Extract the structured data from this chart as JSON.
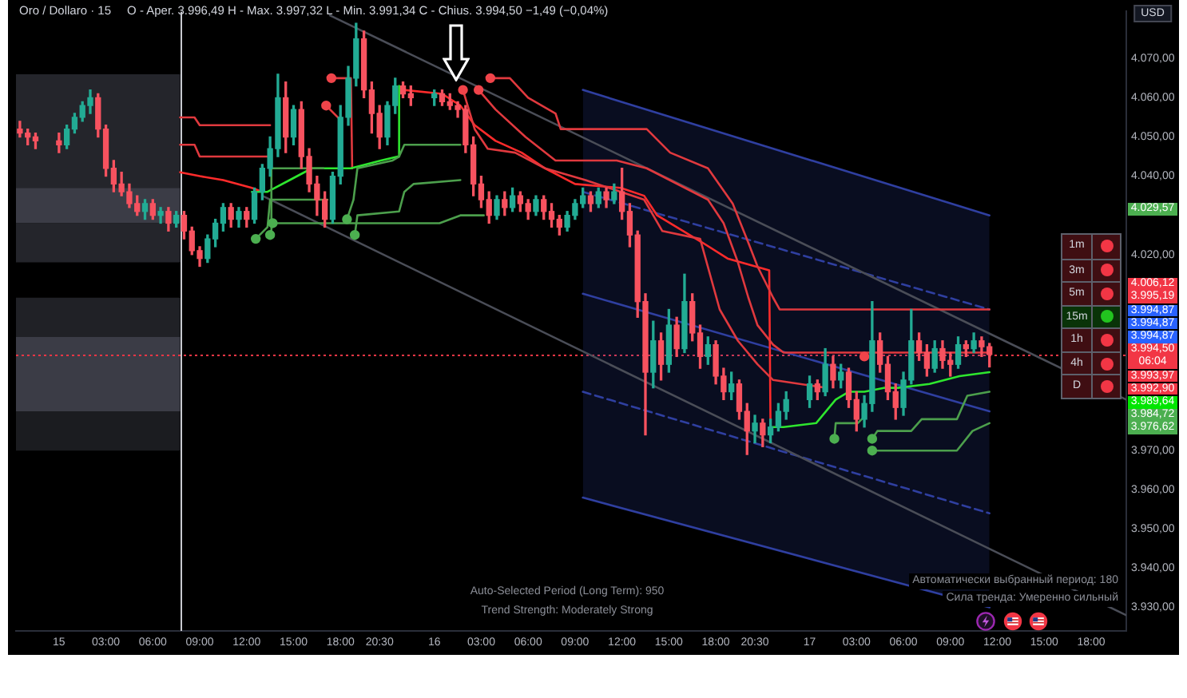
{
  "chart_data": [
    {
      "type": "candlestick",
      "title": "Oro / Dollaro · 15",
      "subtitle": "O - Aper. 3.996,49 H - Max. 3.997,32 L - Min. 3.991,34 C - Chius. 3.994,50 −1,49 (−0,04%)",
      "xlim": [
        "--10-14T21:15",
        "--10-17T20:15"
      ],
      "ylim": [
        3924,
        4082
      ],
      "xticks": [
        {
          "value": "--10-15",
          "label": "15"
        },
        {
          "value": "--10-15T03:00",
          "label": "03:00"
        },
        {
          "value": "--10-15T06:00",
          "label": "06:00"
        },
        {
          "value": "--10-15T09:00",
          "label": "09:00"
        },
        {
          "value": "--10-15T12:00",
          "label": "12:00"
        },
        {
          "value": "--10-15T15:00",
          "label": "15:00"
        },
        {
          "value": "--10-15T18:00",
          "label": "18:00"
        },
        {
          "value": "--10-15T20:30",
          "label": "20:30"
        },
        {
          "value": "--10-16",
          "label": "16"
        },
        {
          "value": "--10-16T03:00",
          "label": "03:00"
        },
        {
          "value": "--10-16T06:00",
          "label": "06:00"
        },
        {
          "value": "--10-16T09:00",
          "label": "09:00"
        },
        {
          "value": "--10-16T12:00",
          "label": "12:00"
        },
        {
          "value": "--10-16T15:00",
          "label": "15:00"
        },
        {
          "value": "--10-16T18:00",
          "label": "18:00"
        },
        {
          "value": "--10-16T20:30",
          "label": "20:30"
        },
        {
          "value": "--10-17",
          "label": "17"
        },
        {
          "value": "--10-17T03:00",
          "label": "03:00"
        },
        {
          "value": "--10-17T06:00",
          "label": "06:00"
        },
        {
          "value": "--10-17T09:00",
          "label": "09:00"
        },
        {
          "value": "--10-17T12:00",
          "label": "12:00"
        },
        {
          "value": "--10-17T15:00",
          "label": "15:00"
        },
        {
          "value": "--10-17T18:00",
          "label": "18:00"
        }
      ],
      "yticks": [
        {
          "value": 3930,
          "label": "3.930,00"
        },
        {
          "value": 3940,
          "label": "3.940,00"
        },
        {
          "value": 3950,
          "label": "3.950,00"
        },
        {
          "value": 3960,
          "label": "3.960,00"
        },
        {
          "value": 3970,
          "label": "3.970,00"
        },
        {
          "value": 4020,
          "label": "4.020,00"
        },
        {
          "value": 4040,
          "label": "4.040,00"
        },
        {
          "value": 4050,
          "label": "4.050,00"
        },
        {
          "value": 4060,
          "label": "4.060,00"
        },
        {
          "value": 4070,
          "label": "4.070,00"
        }
      ],
      "bands": [
        {
          "axis": "y",
          "from": 4037,
          "to": 4066,
          "color": "#24252b"
        },
        {
          "axis": "y",
          "from": 4028,
          "to": 4037,
          "color": "#3b3c46"
        },
        {
          "axis": "y",
          "from": 4018,
          "to": 4028,
          "color": "#24252b"
        },
        {
          "axis": "y",
          "from": 3999,
          "to": 4009,
          "color": "#202126"
        },
        {
          "axis": "y",
          "from": 3980,
          "to": 3999,
          "color": "#3b3c46"
        },
        {
          "axis": "y",
          "from": 3970,
          "to": 3980,
          "color": "#1b1c20"
        }
      ],
      "ref_lines": [
        {
          "axis": "x",
          "value": "--10-15T07:45",
          "color": "#c8cad0"
        },
        {
          "axis": "y",
          "value": 3994.5,
          "color": "#f23645",
          "line_style": "dotted"
        }
      ],
      "annotations": [
        "Auto-Selected Period (Long Term): 950",
        "Trend Strength: Moderately Strong",
        "Автоматически выбранный период: 180",
        "Сила тренда: Умеренно сильный",
        "USD",
        "4.029,57",
        "4.006,12",
        "3.995,19",
        "3.994,87",
        "3.994,87",
        "3.994,87",
        "3.994,50",
        "06:04",
        "3.993,97",
        "3.992,90",
        "3.989,64",
        "3.984,72",
        "3.976,62"
      ],
      "series": [
        {
          "type": "line",
          "color": "#2f3fa0",
          "x": [
            "--10-16T09:30",
            "--10-17T11:30"
          ],
          "values": [
            4010,
            3980
          ],
          "upper": [
            4062,
            4030
          ],
          "lower": [
            3958,
            3930
          ]
        },
        {
          "type": "line",
          "color": "#2f3fa0",
          "x": [
            "--10-16T09:30",
            "--10-17T11:30"
          ],
          "values": [
            4062,
            4030
          ]
        },
        {
          "type": "line",
          "color": "#2f3fa0",
          "line_style": "dashed",
          "x": [
            "--10-16T09:30",
            "--10-17T11:30"
          ],
          "values": [
            4036,
            4006
          ]
        },
        {
          "type": "line",
          "color": "#2f3fa0",
          "line_style": "dashed",
          "x": [
            "--10-16T09:30",
            "--10-17T11:30"
          ],
          "values": [
            3985,
            3954
          ]
        },
        {
          "type": "line",
          "color": "#2f3fa0",
          "x": [
            "--10-16T09:30",
            "--10-17T11:30"
          ],
          "values": [
            3958,
            3930
          ]
        },
        {
          "type": "line",
          "color": "#4a4d57",
          "x": [
            "--10-15T17:20",
            "--10-17T20:15"
          ],
          "values": [
            4081,
            3983
          ]
        },
        {
          "type": "line",
          "color": "#4a4d57",
          "x": [
            "--10-15T13:00",
            "--10-17T20:15"
          ],
          "values": [
            4035,
            3928
          ]
        },
        {
          "type": "line",
          "color": "#e0393e",
          "x": [
            "--10-15T07:45",
            "--10-15T08:40",
            "--10-15T09:00",
            "--10-15T13:30"
          ],
          "values": [
            4055,
            4055,
            4053,
            4053
          ]
        },
        {
          "type": "line",
          "color": "#e0393e",
          "x": [
            "--10-15T07:45",
            "--10-15T08:40",
            "--10-15T09:00",
            "--10-15T13:30"
          ],
          "values": [
            4048,
            4048,
            4045,
            4045
          ]
        },
        {
          "type": "line",
          "color": "#e0393e",
          "x": [
            "--10-15T17:25",
            "--10-15T18:40",
            "--10-15T18:45"
          ],
          "values": [
            4065,
            4065,
            4042
          ]
        },
        {
          "type": "line",
          "color": "#e0393e",
          "x": [
            "--10-15T17:05",
            "--10-15T18:05"
          ],
          "values": [
            4058,
            4054
          ]
        },
        {
          "type": "line",
          "color": "#ff2b2b",
          "x": [
            "--10-15T07:45",
            "--10-15T09:00",
            "--10-15T10:30",
            "--10-15T12:20",
            "--10-15T13:00"
          ],
          "values": [
            4041,
            4040,
            4039,
            4037,
            4036
          ]
        },
        {
          "type": "line",
          "color": "#ff2b2b",
          "x": [
            "--10-15T22:00",
            "--10-16T00:30",
            "--10-16T01:40",
            "--10-16T02:35",
            "--10-16T03:55",
            "--10-16T05:35",
            "--10-16T07:05",
            "--10-16T09:00",
            "--10-16T11:55",
            "--10-16T13:25",
            "--10-16T14:15",
            "--10-16T17:10",
            "--10-16T18:45",
            "--10-16T21:25",
            "--10-16T21:30"
          ],
          "values": [
            4062,
            4061,
            4058,
            4053,
            4049,
            4046,
            4042,
            4038,
            4037,
            4035,
            4030,
            4023,
            4019,
            4016,
            3976
          ]
        },
        {
          "type": "line",
          "color": "#e0393e",
          "x": [
            "--10-16T03:35",
            "--10-16T04:50",
            "--10-16T06:00",
            "--10-16T07:45",
            "--10-16T08:05",
            "--10-16T13:35",
            "--10-16T15:05",
            "--10-16T17:30",
            "--10-16T19:05",
            "--10-16T20:05",
            "--10-16T20:40",
            "--10-16T21:40",
            "--10-16T22:05",
            "--10-17T11:30"
          ],
          "values": [
            4065,
            4065,
            4060,
            4056,
            4052,
            4052,
            4046,
            4042,
            4033,
            4023,
            4017,
            4009,
            4006,
            4006
          ]
        },
        {
          "type": "line",
          "color": "#e0393e",
          "x": [
            "--10-16T02:50",
            "--10-16T03:55",
            "--10-16T05:50",
            "--10-16T07:45",
            "--10-16T11:40",
            "--10-16T13:35",
            "--10-16T17:30",
            "--10-16T18:30",
            "--10-16T19:25",
            "--10-16T20:05",
            "--10-16T20:40",
            "--10-16T21:40",
            "--10-16T22:20",
            "--10-17T11:30"
          ],
          "values": [
            4062,
            4057,
            4050,
            4044,
            4044,
            4042,
            4034,
            4028,
            4018,
            4009,
            4002,
            3997,
            3995,
            3995
          ]
        },
        {
          "type": "line",
          "color": "#e0393e",
          "x": [
            "--10-16T01:50",
            "--10-16T02:35",
            "--10-16T03:25",
            "--10-16T05:10",
            "--10-16T07:05",
            "--10-16T09:40",
            "--10-16T13:25",
            "--10-16T14:35",
            "--10-16T17:00",
            "--10-16T18:15",
            "--10-16T19:25",
            "--10-16T20:40",
            "--10-16T21:40",
            "--10-17T01:05"
          ],
          "values": [
            4062,
            4052,
            4047,
            4046,
            4042,
            4039,
            4034,
            4026,
            4024,
            4006,
            3998,
            3992,
            3988,
            3986
          ]
        },
        {
          "type": "line",
          "color": "#2ee62e",
          "x": [
            "--10-15T12:20",
            "--10-15T13:20",
            "--10-15T14:45",
            "--10-15T16:10",
            "--10-15T18:40",
            "--10-15T20:35",
            "--10-15T21:40",
            "--10-15T21:45"
          ],
          "values": [
            4036,
            4036,
            4039,
            4042,
            4042,
            4044,
            4045,
            4063
          ]
        },
        {
          "type": "line",
          "color": "#2ee62e",
          "x": [
            "--10-16T21:30",
            "--10-16T22:20",
            "--10-17T00:25",
            "--10-17T01:40",
            "--10-17T02:30",
            "--10-17T03:30",
            "--10-17T04:45",
            "--10-17T05:40",
            "--10-17T07:40",
            "--10-17T09:35",
            "--10-17T11:30"
          ],
          "values": [
            3976,
            3976,
            3977,
            3983,
            3985,
            3985,
            3986,
            3986,
            3987,
            3989,
            3990
          ]
        },
        {
          "type": "line",
          "color": "#4c9f4c",
          "x": [
            "--10-15T12:35",
            "--10-15T13:20",
            "--10-15T13:30",
            "--10-15T13:35",
            "--10-15T16:55"
          ],
          "values": [
            4024,
            4027,
            4034,
            4042,
            4042
          ]
        },
        {
          "type": "line",
          "color": "#4c9f4c",
          "x": [
            "--10-15T13:30",
            "--10-15T13:35",
            "--10-15T17:10"
          ],
          "values": [
            4025,
            4034,
            4034
          ]
        },
        {
          "type": "line",
          "color": "#4c9f4c",
          "x": [
            "--10-15T13:40",
            "--10-16T00:20",
            "--10-16T01:40",
            "--10-16T03:10"
          ],
          "values": [
            4028,
            4028,
            4030,
            4030
          ]
        },
        {
          "type": "line",
          "color": "#4c9f4c",
          "x": [
            "--10-15T18:25",
            "--10-15T18:50",
            "--10-15T19:05",
            "--10-15T21:20",
            "--10-15T21:45",
            "--10-15T22:05",
            "--10-16T01:40"
          ],
          "values": [
            4029,
            4034,
            4042,
            4044,
            4045,
            4048,
            4048
          ]
        },
        {
          "type": "line",
          "color": "#4c9f4c",
          "x": [
            "--10-15T18:55",
            "--10-15T19:05",
            "--10-15T21:45",
            "--10-15T22:05",
            "--10-15T22:40",
            "--10-16T01:40"
          ],
          "values": [
            4025,
            4030,
            4031,
            4036,
            4038,
            4039
          ]
        },
        {
          "type": "line",
          "color": "#4c9f4c",
          "x": [
            "--10-17T01:35",
            "--10-17T01:40",
            "--10-17T03:05",
            "--10-17T03:20"
          ],
          "values": [
            3973,
            3977,
            3977,
            3978
          ]
        },
        {
          "type": "line",
          "color": "#4c9f4c",
          "x": [
            "--10-17T04:00",
            "--10-17T04:20",
            "--10-17T06:30",
            "--10-17T07:10",
            "--10-17T09:25",
            "--10-17T10:05",
            "--10-17T11:30"
          ],
          "values": [
            3973,
            3975,
            3975,
            3978,
            3978,
            3984,
            3985
          ]
        },
        {
          "type": "line",
          "color": "#4c9f4c",
          "x": [
            "--10-17T04:00",
            "--10-17T09:25",
            "--10-17T10:25",
            "--10-17T11:30"
          ],
          "values": [
            3970,
            3970,
            3975,
            3977
          ]
        },
        {
          "type": "scatter",
          "color": "#f0444a",
          "marker": "circle",
          "x": [
            "--10-15T17:05",
            "--10-15T17:25",
            "--10-16T01:50",
            "--10-16T02:50",
            "--10-16T03:35",
            "--10-17T03:30"
          ],
          "values": [
            4058,
            4065,
            4062,
            4062,
            4065,
            3994
          ]
        },
        {
          "type": "scatter",
          "color": "#4caf50",
          "marker": "circle",
          "x": [
            "--10-15T12:35",
            "--10-15T13:30",
            "--10-15T13:40",
            "--10-15T18:25",
            "--10-15T18:55",
            "--10-17T01:35",
            "--10-17T04:00",
            "--10-17T04:00"
          ],
          "values": [
            4024,
            4025,
            4028,
            4029,
            4025,
            3973,
            3973,
            3970
          ]
        },
        {
          "type": "candlestick",
          "color": "#22ab94",
          "x": [
            "--10-15T00:30",
            "--10-15T01:00",
            "--10-15T01:30",
            "--10-15T02:00",
            "--10-15T05:30",
            "--10-15T06:30",
            "--10-15T07:30",
            "--10-15T09:30",
            "--10-15T10:00",
            "--10-15T10:30",
            "--10-15T11:30",
            "--10-15T12:30",
            "--10-15T13:00",
            "--10-15T13:30",
            "--10-15T14:00",
            "--10-15T15:00",
            "--10-15T17:30",
            "--10-15T18:00",
            "--10-15T18:30",
            "--10-15T19:00",
            "--10-15T21:00",
            "--10-15T21:30",
            "--10-16T00:00",
            "--10-16T04:00",
            "--10-16T05:00",
            "--10-16T06:30",
            "--10-16T08:30",
            "--10-16T09:00",
            "--10-16T09:30",
            "--10-16T10:30",
            "--10-16T11:30",
            "--10-16T14:00",
            "--10-16T15:00",
            "--10-16T16:00",
            "--10-16T17:30",
            "--10-16T19:00",
            "--10-16T20:30",
            "--10-16T21:30",
            "--10-16T22:00",
            "--10-16T22:30",
            "--10-17T00:00",
            "--10-17T01:00",
            "--10-17T02:00",
            "--10-17T03:30",
            "--10-17T04:00",
            "--10-17T06:00",
            "--10-17T06:30",
            "--10-17T08:00",
            "--10-17T09:30",
            "--10-17T10:30"
          ],
          "ohlc": [
            [
              4048,
              4053,
              4047,
              4052
            ],
            [
              4052,
              4056,
              4051,
              4055
            ],
            [
              4055,
              4059,
              4054,
              4058
            ],
            [
              4058,
              4062,
              4056,
              4060
            ],
            [
              4031,
              4034,
              4029,
              4033
            ],
            [
              4030,
              4032,
              4028,
              4031
            ],
            [
              4028,
              4031,
              4027,
              4030
            ],
            [
              4019,
              4025,
              4018,
              4024
            ],
            [
              4024,
              4029,
              4022,
              4028
            ],
            [
              4028,
              4033,
              4026,
              4032
            ],
            [
              4029,
              4032,
              4027,
              4031
            ],
            [
              4029,
              4037,
              4028,
              4036
            ],
            [
              4036,
              4043,
              4034,
              4042
            ],
            [
              4042,
              4050,
              4040,
              4047
            ],
            [
              4047,
              4066,
              4045,
              4060
            ],
            [
              4050,
              4058,
              4048,
              4057
            ],
            [
              4029,
              4041,
              4028,
              4040
            ],
            [
              4040,
              4058,
              4038,
              4055
            ],
            [
              4055,
              4068,
              4053,
              4065
            ],
            [
              4065,
              4079,
              4063,
              4075
            ],
            [
              4050,
              4059,
              4048,
              4058
            ],
            [
              4058,
              4065,
              4056,
              4063
            ],
            [
              4060,
              4062,
              4058,
              4061
            ],
            [
              4030,
              4035,
              4029,
              4034
            ],
            [
              4032,
              4037,
              4031,
              4035
            ],
            [
              4031,
              4035,
              4030,
              4034
            ],
            [
              4027,
              4031,
              4026,
              4030
            ],
            [
              4030,
              4034,
              4029,
              4033
            ],
            [
              4033,
              4037,
              4032,
              4035
            ],
            [
              4033,
              4037,
              4032,
              4036
            ],
            [
              4034,
              4038,
              4033,
              4036
            ],
            [
              3990,
              4003,
              3986,
              3998
            ],
            [
              3992,
              4006,
              3990,
              4002
            ],
            [
              3996,
              4015,
              3995,
              4008
            ],
            [
              3994,
              3999,
              3992,
              3997
            ],
            [
              3985,
              3990,
              3983,
              3987
            ],
            [
              3975,
              3979,
              3972,
              3977
            ],
            [
              3974,
              3978,
              3972,
              3976
            ],
            [
              3976,
              3982,
              3975,
              3980
            ],
            [
              3980,
              3985,
              3978,
              3983
            ],
            [
              3983,
              3989,
              3981,
              3987
            ],
            [
              3985,
              3996,
              3984,
              3992
            ],
            [
              3988,
              3992,
              3986,
              3990
            ],
            [
              3978,
              3984,
              3976,
              3982
            ],
            [
              3982,
              4008,
              3980,
              3998
            ],
            [
              3981,
              3990,
              3979,
              3988
            ],
            [
              3988,
              4006,
              3987,
              3998
            ],
            [
              3991,
              3998,
              3990,
              3996
            ],
            [
              3992,
              3999,
              3991,
              3997
            ],
            [
              3996,
              4000,
              3995,
              3998
            ]
          ]
        },
        {
          "type": "candlestick",
          "color": "#f7525f",
          "x": [
            "--10-14T21:30",
            "--10-14T22:00",
            "--10-14T22:30",
            "--10-15T00:00",
            "--10-15T02:30",
            "--10-15T03:00",
            "--10-15T03:30",
            "--10-15T04:00",
            "--10-15T04:30",
            "--10-15T05:00",
            "--10-15T06:00",
            "--10-15T07:00",
            "--10-15T08:00",
            "--10-15T08:30",
            "--10-15T09:00",
            "--10-15T11:00",
            "--10-15T12:00",
            "--10-15T14:30",
            "--10-15T15:30",
            "--10-15T16:00",
            "--10-15T16:30",
            "--10-15T17:00",
            "--10-15T19:30",
            "--10-15T20:00",
            "--10-15T20:30",
            "--10-15T22:00",
            "--10-15T22:30",
            "--10-16T00:30",
            "--10-16T01:00",
            "--10-16T01:30",
            "--10-16T02:00",
            "--10-16T02:30",
            "--10-16T03:00",
            "--10-16T03:30",
            "--10-16T04:30",
            "--10-16T05:30",
            "--10-16T06:00",
            "--10-16T07:00",
            "--10-16T07:30",
            "--10-16T08:00",
            "--10-16T10:00",
            "--10-16T11:00",
            "--10-16T12:00",
            "--10-16T12:30",
            "--10-16T13:00",
            "--10-16T13:30",
            "--10-16T14:30",
            "--10-16T15:30",
            "--10-16T16:30",
            "--10-16T17:00",
            "--10-16T18:00",
            "--10-16T18:30",
            "--10-16T19:30",
            "--10-16T20:00",
            "--10-16T21:00",
            "--10-17T00:30",
            "--10-17T01:30",
            "--10-17T02:30",
            "--10-17T03:00",
            "--10-17T04:30",
            "--10-17T05:00",
            "--10-17T05:30",
            "--10-17T07:00",
            "--10-17T07:30",
            "--10-17T08:30",
            "--10-17T09:00",
            "--10-17T10:00",
            "--10-17T11:00",
            "--10-17T11:30"
          ],
          "ohlc": [
            [
              4052,
              4054,
              4050,
              4051
            ],
            [
              4051,
              4052,
              4048,
              4050
            ],
            [
              4050,
              4051,
              4047,
              4049
            ],
            [
              4049,
              4051,
              4046,
              4048
            ],
            [
              4060,
              4061,
              4050,
              4052
            ],
            [
              4052,
              4053,
              4040,
              4042
            ],
            [
              4042,
              4044,
              4036,
              4038
            ],
            [
              4038,
              4041,
              4035,
              4036
            ],
            [
              4036,
              4038,
              4032,
              4033
            ],
            [
              4033,
              4035,
              4030,
              4031
            ],
            [
              4033,
              4034,
              4029,
              4030
            ],
            [
              4031,
              4032,
              4026,
              4028
            ],
            [
              4030,
              4031,
              4024,
              4026
            ],
            [
              4026,
              4027,
              4020,
              4021
            ],
            [
              4021,
              4022,
              4017,
              4019
            ],
            [
              4032,
              4033,
              4027,
              4029
            ],
            [
              4031,
              4032,
              4027,
              4029
            ],
            [
              4060,
              4064,
              4046,
              4050
            ],
            [
              4057,
              4059,
              4042,
              4045
            ],
            [
              4045,
              4047,
              4036,
              4038
            ],
            [
              4038,
              4040,
              4030,
              4034
            ],
            [
              4034,
              4036,
              4027,
              4029
            ],
            [
              4075,
              4077,
              4060,
              4062
            ],
            [
              4062,
              4064,
              4051,
              4056
            ],
            [
              4056,
              4058,
              4047,
              4050
            ],
            [
              4063,
              4064,
              4060,
              4061
            ],
            [
              4061,
              4063,
              4058,
              4060
            ],
            [
              4061,
              4062,
              4058,
              4059
            ],
            [
              4059,
              4061,
              4057,
              4058
            ],
            [
              4058,
              4059,
              4055,
              4057
            ],
            [
              4057,
              4058,
              4046,
              4048
            ],
            [
              4048,
              4050,
              4035,
              4038
            ],
            [
              4038,
              4040,
              4032,
              4034
            ],
            [
              4034,
              4036,
              4028,
              4030
            ],
            [
              4034,
              4036,
              4030,
              4032
            ],
            [
              4035,
              4036,
              4031,
              4033
            ],
            [
              4033,
              4034,
              4029,
              4031
            ],
            [
              4034,
              4035,
              4029,
              4031
            ],
            [
              4031,
              4033,
              4027,
              4029
            ],
            [
              4029,
              4030,
              4025,
              4027
            ],
            [
              4035,
              4036,
              4031,
              4033
            ],
            [
              4036,
              4037,
              4032,
              4034
            ],
            [
              4036,
              4042,
              4029,
              4031
            ],
            [
              4031,
              4033,
              4022,
              4025
            ],
            [
              4025,
              4026,
              4004,
              4008
            ],
            [
              4008,
              4010,
              3974,
              3990
            ],
            [
              3998,
              4000,
              3988,
              3992
            ],
            [
              4002,
              4004,
              3994,
              3996
            ],
            [
              4008,
              4010,
              3998,
              4000
            ],
            [
              4000,
              4002,
              3991,
              3994
            ],
            [
              3997,
              3998,
              3987,
              3989
            ],
            [
              3989,
              3991,
              3983,
              3985
            ],
            [
              3987,
              3988,
              3978,
              3980
            ],
            [
              3980,
              3982,
              3969,
              3975
            ],
            [
              3977,
              3978,
              3971,
              3974
            ],
            [
              3987,
              3988,
              3983,
              3985
            ],
            [
              3992,
              3994,
              3986,
              3988
            ],
            [
              3990,
              3991,
              3981,
              3983
            ],
            [
              3983,
              3985,
              3975,
              3978
            ],
            [
              3998,
              4000,
              3990,
              3992
            ],
            [
              3992,
              3994,
              3983,
              3985
            ],
            [
              3985,
              3987,
              3978,
              3981
            ],
            [
              3998,
              4000,
              3993,
              3995
            ],
            [
              3995,
              3997,
              3989,
              3991
            ],
            [
              3996,
              3998,
              3991,
              3993
            ],
            [
              3993,
              3995,
              3989,
              3992
            ],
            [
              3997,
              3998,
              3994,
              3996
            ],
            [
              3998,
              3999,
              3994,
              3996.49
            ],
            [
              3996.49,
              3997.32,
              3991.34,
              3994.5
            ]
          ]
        }
      ]
    },
    {
      "type": "other",
      "categories": [
        "1m",
        "3m",
        "5m",
        "15m",
        "1h",
        "4h",
        "D"
      ],
      "colors": [
        "#f23645",
        "#f23645",
        "#f23645",
        "#22c41f",
        "#f23645",
        "#f23645",
        "#f23645"
      ]
    }
  ]
}
